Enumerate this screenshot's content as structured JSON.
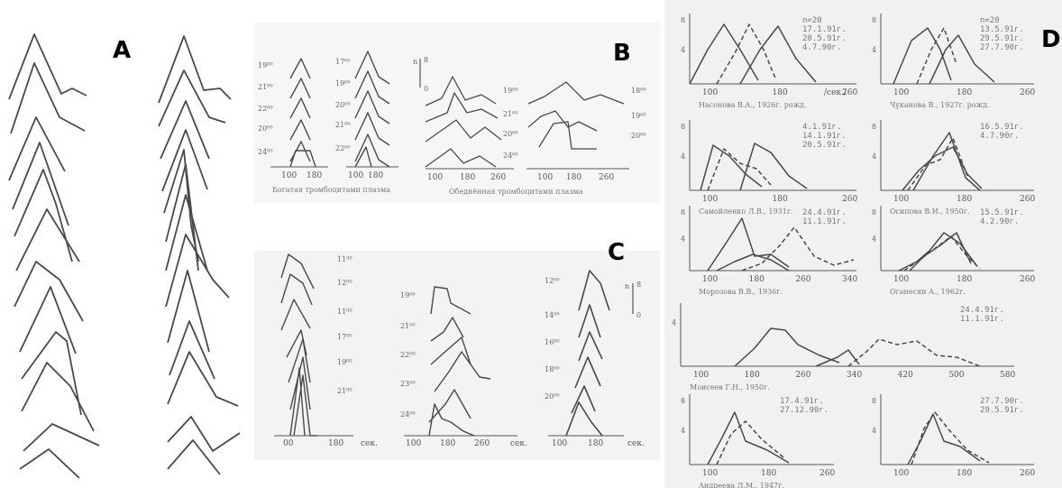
{
  "panels": {
    "a": {
      "label": "A"
    },
    "b": {
      "label": "B",
      "scale_label": "n",
      "scale_value": "8",
      "scale_zero": "0",
      "col1_hours": [
        "19⁰⁰",
        "21⁰⁰",
        "22⁰⁰",
        "20⁰⁰",
        "24⁰⁰"
      ],
      "col2_hours": [
        "17⁰⁰",
        "19⁰⁰",
        "20⁰⁰",
        "21⁰⁰",
        "22⁰⁰"
      ],
      "col3_hours": [
        "19⁰⁰",
        "21⁰⁰",
        "20⁰⁰",
        "24⁰⁰"
      ],
      "col4_hours": [
        "18⁰⁰",
        "19⁰⁰",
        "20⁰⁰"
      ],
      "axis1_ticks": [
        "100",
        "180"
      ],
      "axis2_ticks": [
        "100",
        "180",
        "260"
      ],
      "axis3_ticks": [
        "100",
        "180",
        "260"
      ],
      "caption_left": "Богатая тромбоцитами плазма",
      "caption_right": "Обеднённая тромбоцитами плазма"
    },
    "c": {
      "label": "C",
      "scale_label": "n",
      "scale_value": "8",
      "scale_zero": "0",
      "col1_hours": [
        "11⁰⁰",
        "12⁰⁰",
        "11⁰⁰",
        "17⁰⁰",
        "19⁰⁰",
        "21⁰⁰"
      ],
      "col2_hours": [
        "19⁰⁰",
        "21⁰⁰",
        "22⁰⁰",
        "23⁰⁰",
        "24⁰⁰"
      ],
      "col3_hours": [
        "12⁰⁰",
        "14⁰⁰",
        "16⁰⁰",
        "18⁰⁰",
        "20⁰⁰"
      ],
      "axis1_ticks": [
        "00",
        "180",
        "сек."
      ],
      "axis2_ticks": [
        "100",
        "180",
        "260",
        "сек."
      ],
      "axis3_ticks": [
        "100",
        "180",
        "сек."
      ]
    },
    "d": {
      "label": "D",
      "charts": [
        {
          "ticks": [
            "100",
            "180",
            "260"
          ],
          "unit": "/сек./",
          "y": [
            "8",
            "4"
          ],
          "stats": [
            "n=20",
            "17.1.91г.",
            "20.5.91г.",
            "4.7.90г."
          ],
          "caption": "Насонова В.А., 1926г. рожд."
        },
        {
          "ticks": [
            "100",
            "180",
            "260"
          ],
          "y": [
            "8",
            "4"
          ],
          "stats": [
            "n=20",
            "13.5.91г.",
            "29.5.91г.",
            "27.7.90г."
          ],
          "caption": "Чуканова В., 1927г. рожд."
        },
        {
          "ticks": [
            "100",
            "180",
            "260"
          ],
          "y": [
            "8",
            "4"
          ],
          "stats": [
            "4.1.91г.",
            "14.1.91г.",
            "20.5.91г."
          ],
          "caption": "Самойленко Л.В., 1931г."
        },
        {
          "ticks": [
            "100",
            "180",
            "260"
          ],
          "y": [
            "8",
            "4"
          ],
          "stats": [
            "16.5.91г.",
            "4.7.90г."
          ],
          "caption": "Осипова В.И., 1950г."
        },
        {
          "ticks": [
            "100",
            "180",
            "260",
            "340"
          ],
          "y": [
            "8",
            "4"
          ],
          "stats": [
            "24.4.91г.",
            "11.1.91г."
          ],
          "caption": "Морозова В.В., 1936г."
        },
        {
          "ticks": [
            "100",
            "180",
            "260"
          ],
          "y": [
            "8",
            "4"
          ],
          "stats": [
            "15.5.91г.",
            "4.2.90г."
          ],
          "caption": "Оганесян А., 1962г."
        },
        {
          "ticks": [
            "100",
            "180",
            "260",
            "340",
            "420",
            "500",
            "580"
          ],
          "y": [
            "4"
          ],
          "stats": [
            "24.4.91г.",
            "11.1.91г."
          ],
          "caption": "Моисеев Г.Н., 1950г."
        },
        {
          "ticks": [
            "100",
            "180",
            "260"
          ],
          "y": [
            "8",
            "4"
          ],
          "stats": [
            "17.4.91г.",
            "27.12.90г."
          ],
          "caption": "Андреева Л.М., 1947г."
        },
        {
          "ticks": [
            "100",
            "180",
            "260"
          ],
          "y": [
            "8",
            "4"
          ],
          "stats": [
            "27.7.90г.",
            "29.5.91г."
          ],
          "caption": ""
        }
      ]
    }
  },
  "colors": {
    "line": "#4a4a4a",
    "faint": "#9a9a9a",
    "ink": "#000000"
  }
}
